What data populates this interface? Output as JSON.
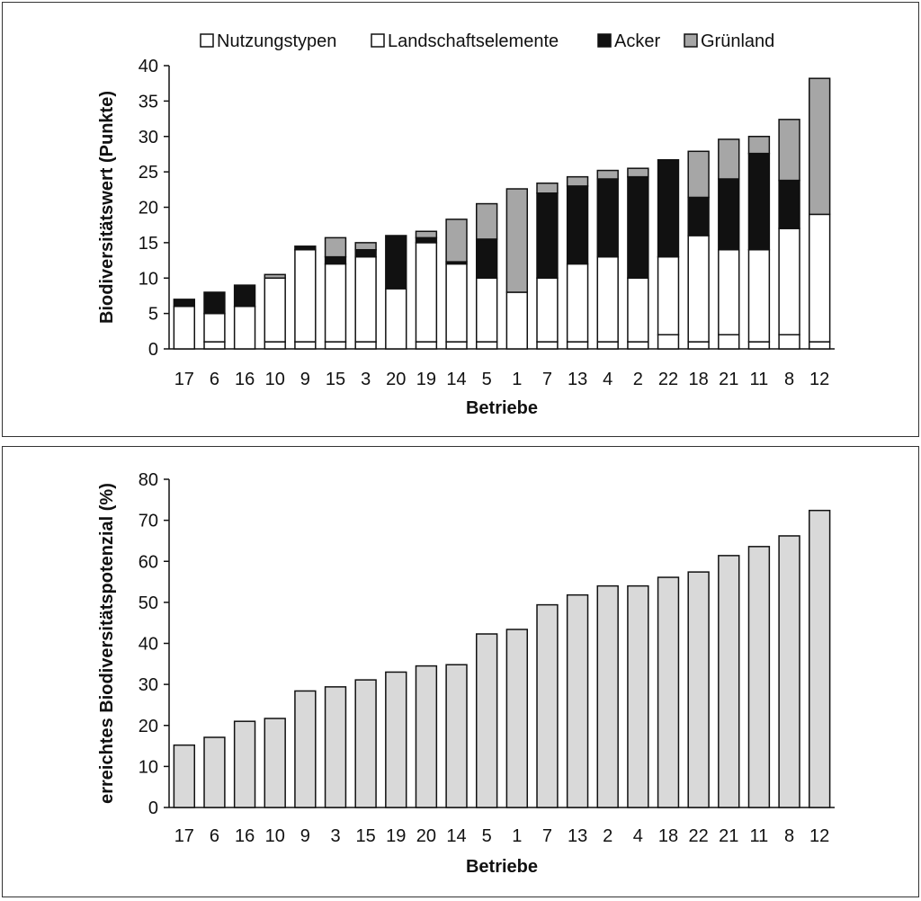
{
  "chart_data": [
    {
      "type": "bar",
      "stacked": true,
      "categories": [
        "17",
        "6",
        "16",
        "10",
        "9",
        "15",
        "3",
        "20",
        "19",
        "14",
        "5",
        "1",
        "7",
        "13",
        "4",
        "2",
        "22",
        "18",
        "21",
        "11",
        "8",
        "12"
      ],
      "series": [
        {
          "name": "Nutzungstypen",
          "color": "#ffffff",
          "values": [
            0,
            1,
            0,
            1,
            1,
            1,
            1,
            0,
            1,
            1,
            1,
            0,
            1,
            1,
            1,
            1,
            2,
            1,
            2,
            1,
            2,
            1
          ]
        },
        {
          "name": "Landschaftselemente",
          "color": "#ffffff",
          "values": [
            6,
            4,
            6,
            9,
            13,
            11,
            12,
            8.5,
            14,
            11,
            9,
            8,
            9,
            11,
            12,
            9,
            11,
            15,
            12,
            13,
            15,
            18
          ]
        },
        {
          "name": "Acker",
          "color": "#111111",
          "values": [
            1,
            3,
            3,
            0,
            0.5,
            1,
            1,
            7.5,
            0.7,
            0.3,
            5.5,
            0,
            12,
            11,
            11,
            14.3,
            13.7,
            5.4,
            10,
            13.6,
            6.8,
            0
          ]
        },
        {
          "name": "Grünland",
          "color": "#a6a6a6",
          "values": [
            0,
            0,
            0,
            0.5,
            0,
            2.7,
            1,
            0,
            0.9,
            6,
            5,
            14.6,
            1.4,
            1.3,
            1.2,
            1.2,
            0,
            6.5,
            5.6,
            2.4,
            8.6,
            19.2
          ]
        }
      ],
      "xlabel": "Betriebe",
      "ylabel": "Biodiversitätswert (Punkte)",
      "ylim": [
        0,
        40
      ],
      "yticks": [
        0,
        5,
        10,
        15,
        20,
        25,
        30,
        35,
        40
      ],
      "legend_position": "top"
    },
    {
      "type": "bar",
      "categories": [
        "17",
        "6",
        "16",
        "10",
        "9",
        "3",
        "15",
        "19",
        "20",
        "14",
        "5",
        "1",
        "7",
        "13",
        "2",
        "4",
        "18",
        "22",
        "21",
        "11",
        "8",
        "12"
      ],
      "values": [
        15.2,
        17.1,
        21,
        21.7,
        28.4,
        29.4,
        31.1,
        33,
        34.5,
        34.8,
        42.3,
        43.4,
        49.4,
        51.8,
        54,
        54,
        56.1,
        57.4,
        61.4,
        63.6,
        66.2,
        72.4
      ],
      "color": "#d9d9d9",
      "xlabel": "Betriebe",
      "ylabel": "erreichtes Biodiversitätspotenzial (%)",
      "ylim": [
        0,
        80
      ],
      "yticks": [
        0,
        10,
        20,
        30,
        40,
        50,
        60,
        70,
        80
      ]
    }
  ]
}
